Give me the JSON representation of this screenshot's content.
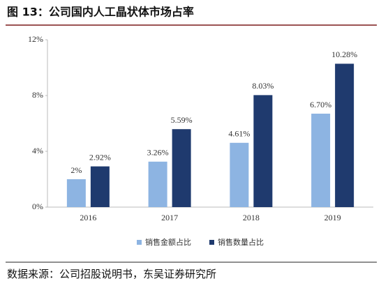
{
  "chart_data": {
    "type": "bar",
    "title": "图 13：公司国内人工晶状体市场占率",
    "categories": [
      "2016",
      "2017",
      "2018",
      "2019"
    ],
    "series": [
      {
        "name": "销售金额占比",
        "color": "#8db4e2",
        "values": [
          2,
          3.26,
          4.61,
          6.7
        ],
        "value_labels": [
          "2%",
          "3.26%",
          "4.61%",
          "6.70%"
        ]
      },
      {
        "name": "销售数量占比",
        "color": "#1f3a6e",
        "values": [
          2.92,
          5.59,
          8.03,
          10.28
        ],
        "value_labels": [
          "2.92%",
          "5.59%",
          "8.03%",
          "10.28%"
        ]
      }
    ],
    "ylim": [
      0,
      12
    ],
    "yticks": [
      {
        "value": 0,
        "label": "0%"
      },
      {
        "value": 4,
        "label": "4%"
      },
      {
        "value": 8,
        "label": "8%"
      },
      {
        "value": 12,
        "label": "12%"
      }
    ],
    "grid": false,
    "source": "数据来源：公司招股说明书，东吴证券研究所"
  }
}
